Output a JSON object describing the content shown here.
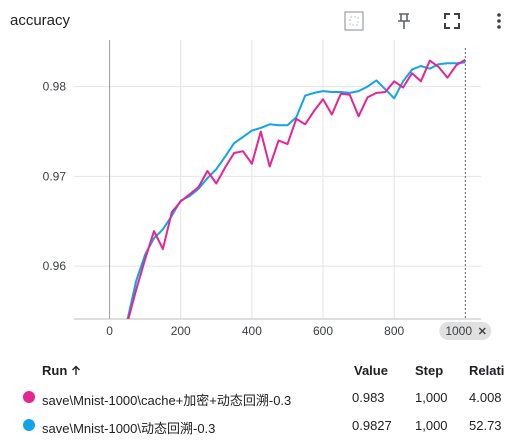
{
  "header": {
    "title": "accuracy"
  },
  "toolbar": {
    "fit_icon": "fit-domain-icon",
    "pin_icon": "pin-icon",
    "fullscreen_icon": "fullscreen-icon",
    "more_icon": "more-vert-icon"
  },
  "chart_data": {
    "type": "line",
    "title": "accuracy",
    "xlim": [
      -100,
      1030
    ],
    "ylim": [
      0.9541,
      0.9852
    ],
    "x_ticks": [
      "0",
      "200",
      "400",
      "600",
      "800"
    ],
    "y_ticks": [
      "0.96",
      "0.97",
      "0.98"
    ],
    "hover_step": "1000",
    "grid": true,
    "series": [
      {
        "name": "save\\Mnist-1000\\cache+加密+动态回溯-0.3",
        "color": "#e52592",
        "x": [
          50,
          75,
          100,
          125,
          150,
          175,
          200,
          225,
          250,
          275,
          300,
          325,
          350,
          375,
          400,
          425,
          450,
          475,
          500,
          525,
          550,
          575,
          600,
          625,
          650,
          675,
          700,
          725,
          750,
          775,
          800,
          825,
          850,
          875,
          900,
          925,
          950,
          975,
          1000
        ],
        "y": [
          0.9537,
          0.9574,
          0.9608,
          0.9639,
          0.9619,
          0.966,
          0.9672,
          0.968,
          0.9688,
          0.9706,
          0.9692,
          0.971,
          0.9726,
          0.9728,
          0.9714,
          0.975,
          0.9711,
          0.974,
          0.9736,
          0.9764,
          0.9758,
          0.9773,
          0.9786,
          0.9769,
          0.9792,
          0.9791,
          0.9767,
          0.9788,
          0.9793,
          0.9794,
          0.9806,
          0.9799,
          0.9815,
          0.9806,
          0.9829,
          0.9822,
          0.981,
          0.9824,
          0.983
        ]
      },
      {
        "name": "save\\Mnist-1000\\动态回溯-0.3",
        "color": "#12a4e9",
        "x": [
          50,
          75,
          100,
          125,
          150,
          175,
          200,
          225,
          250,
          275,
          300,
          325,
          350,
          375,
          400,
          425,
          450,
          475,
          500,
          525,
          550,
          575,
          600,
          625,
          650,
          675,
          700,
          725,
          750,
          775,
          800,
          825,
          850,
          875,
          900,
          925,
          950,
          975,
          1000
        ],
        "y": [
          0.954,
          0.9584,
          0.9613,
          0.9631,
          0.9641,
          0.9656,
          0.9673,
          0.9678,
          0.9686,
          0.9698,
          0.9708,
          0.9722,
          0.9737,
          0.9744,
          0.9751,
          0.9754,
          0.9758,
          0.9757,
          0.9757,
          0.9766,
          0.979,
          0.9793,
          0.9795,
          0.9794,
          0.9794,
          0.9793,
          0.9795,
          0.98,
          0.9807,
          0.9797,
          0.9787,
          0.9806,
          0.9819,
          0.9823,
          0.982,
          0.9825,
          0.9826,
          0.9826,
          0.9827
        ]
      }
    ]
  },
  "table": {
    "headers": {
      "run": "Run",
      "sort_icon": "arrow-up-icon",
      "value": "Value",
      "step": "Step",
      "relative": "Relati"
    },
    "rows": [
      {
        "color": "#e52592",
        "run": "save\\Mnist-1000\\cache+加密+动态回溯-0.3",
        "value": "0.983",
        "step": "1,000",
        "relative": "4.008"
      },
      {
        "color": "#12a4e9",
        "run": "save\\Mnist-1000\\动态回溯-0.3",
        "value": "0.9827",
        "step": "1,000",
        "relative": "52.73"
      }
    ]
  }
}
